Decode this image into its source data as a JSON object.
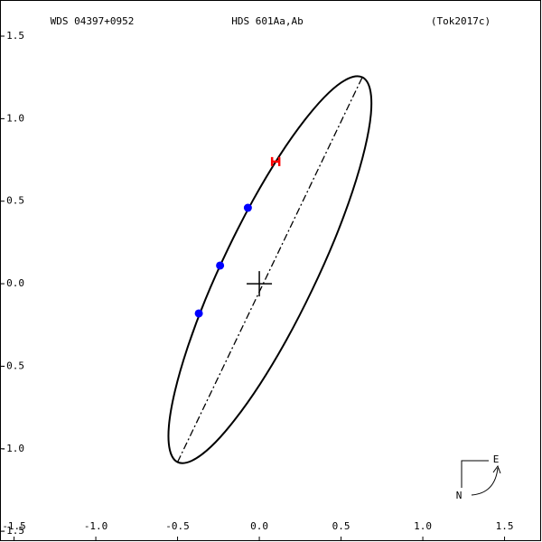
{
  "chart_data": {
    "type": "scatter",
    "title": "HDS 601Aa,Ab",
    "annotations": [
      "WDS 04397+0952",
      "(Tok2017c)"
    ],
    "compass": {
      "east": "E",
      "north": "N"
    },
    "xlim": [
      -1.586,
      1.729
    ],
    "ylim": [
      -1.565,
      1.719
    ],
    "xticks": [
      -1.5,
      {
        "value": -1.0,
        "label": "-1.0"
      },
      -0.5,
      {
        "value": 0.0,
        "label": "0.0"
      },
      0.5,
      {
        "value": 1.0,
        "label": "1.0"
      },
      1.5
    ],
    "yticks": [
      -1.5,
      {
        "value": -1.0,
        "label": "-1.0"
      },
      -0.5,
      {
        "value": 0.0,
        "label": "0.0"
      },
      0.5,
      {
        "value": 1.0,
        "label": "1.0"
      },
      1.5
    ],
    "series": [
      {
        "kind": "orbit",
        "color": "#000000",
        "closed": true,
        "x": [
          0.63,
          0.544,
          0.425,
          0.282,
          0.124,
          -0.038,
          -0.192,
          -0.33,
          -0.44,
          -0.516,
          -0.553,
          -0.547,
          -0.5,
          -0.414,
          -0.295,
          -0.152,
          0.006,
          0.168,
          0.322,
          0.46,
          0.57,
          0.646,
          0.683,
          0.677
        ],
        "values": [
          1.251,
          1.243,
          1.157,
          0.997,
          0.776,
          0.507,
          0.21,
          -0.096,
          -0.39,
          -0.651,
          -0.862,
          -1.009,
          -1.081,
          -1.073,
          -0.987,
          -0.827,
          -0.606,
          -0.337,
          -0.04,
          0.266,
          0.56,
          0.821,
          1.032,
          1.179
        ]
      },
      {
        "kind": "apsides",
        "color": "#000000",
        "dash": "dashdot",
        "x": [
          -0.5,
          0.63
        ],
        "values": [
          -1.081,
          1.251
        ]
      },
      {
        "kind": "points",
        "color": "#0000ff",
        "x": [
          -0.37,
          -0.24,
          -0.07
        ],
        "values": [
          -0.18,
          0.11,
          0.46
        ]
      },
      {
        "kind": "hmarker",
        "color": "#ff0000",
        "x": [
          0.1
        ],
        "values": [
          0.74
        ]
      }
    ]
  }
}
